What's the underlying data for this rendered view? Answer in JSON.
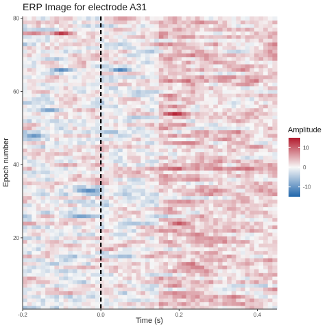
{
  "chart_data": {
    "type": "heatmap",
    "title": "ERP Image for electrode A31",
    "xlabel": "Time (s)",
    "ylabel": "Epoch number",
    "xlim": [
      -0.2,
      0.45
    ],
    "ylim": [
      1,
      80
    ],
    "x_ticks": [
      -0.2,
      0.0,
      0.2,
      0.4
    ],
    "x_tick_labels": [
      "-0.2",
      "0.0",
      "0.2",
      "0.4"
    ],
    "y_ticks": [
      20,
      40,
      60,
      80
    ],
    "y_tick_labels": [
      "20",
      "40",
      "60",
      "80"
    ],
    "n_epochs": 80,
    "stimulus_onset_line": {
      "x": 0.0,
      "style": "dashed",
      "color": "#000000"
    },
    "colorscale": {
      "title": "Amplitude",
      "min": -15,
      "max": 15,
      "low_color": "#2166ac",
      "mid_color": "#f7f7f7",
      "high_color": "#b2182b",
      "ticks": [
        10,
        0,
        -10
      ],
      "tick_labels": [
        "10",
        "0",
        "-10"
      ]
    },
    "notable_values": [
      {
        "epoch": 76,
        "time": -0.1,
        "amplitude": 13
      },
      {
        "epoch": 76,
        "time": -0.17,
        "amplitude": 8
      },
      {
        "epoch": 66,
        "time": -0.1,
        "amplitude": -11
      },
      {
        "epoch": 66,
        "time": 0.05,
        "amplitude": -12
      },
      {
        "epoch": 54,
        "time": 0.19,
        "amplitude": 14
      },
      {
        "epoch": 55,
        "time": -0.13,
        "amplitude": -9
      },
      {
        "epoch": 48,
        "time": -0.17,
        "amplitude": -10
      },
      {
        "epoch": 46,
        "time": 0.23,
        "amplitude": 8
      },
      {
        "epoch": 33,
        "time": -0.03,
        "amplitude": -11
      },
      {
        "epoch": 26,
        "time": -0.05,
        "amplitude": -9
      },
      {
        "epoch": 24,
        "time": 0.2,
        "amplitude": 11
      },
      {
        "epoch": 19,
        "time": 0.25,
        "amplitude": 6
      },
      {
        "epoch": 9,
        "time": -0.18,
        "amplitude": 6
      }
    ],
    "grid": false,
    "legend_position": "right"
  }
}
